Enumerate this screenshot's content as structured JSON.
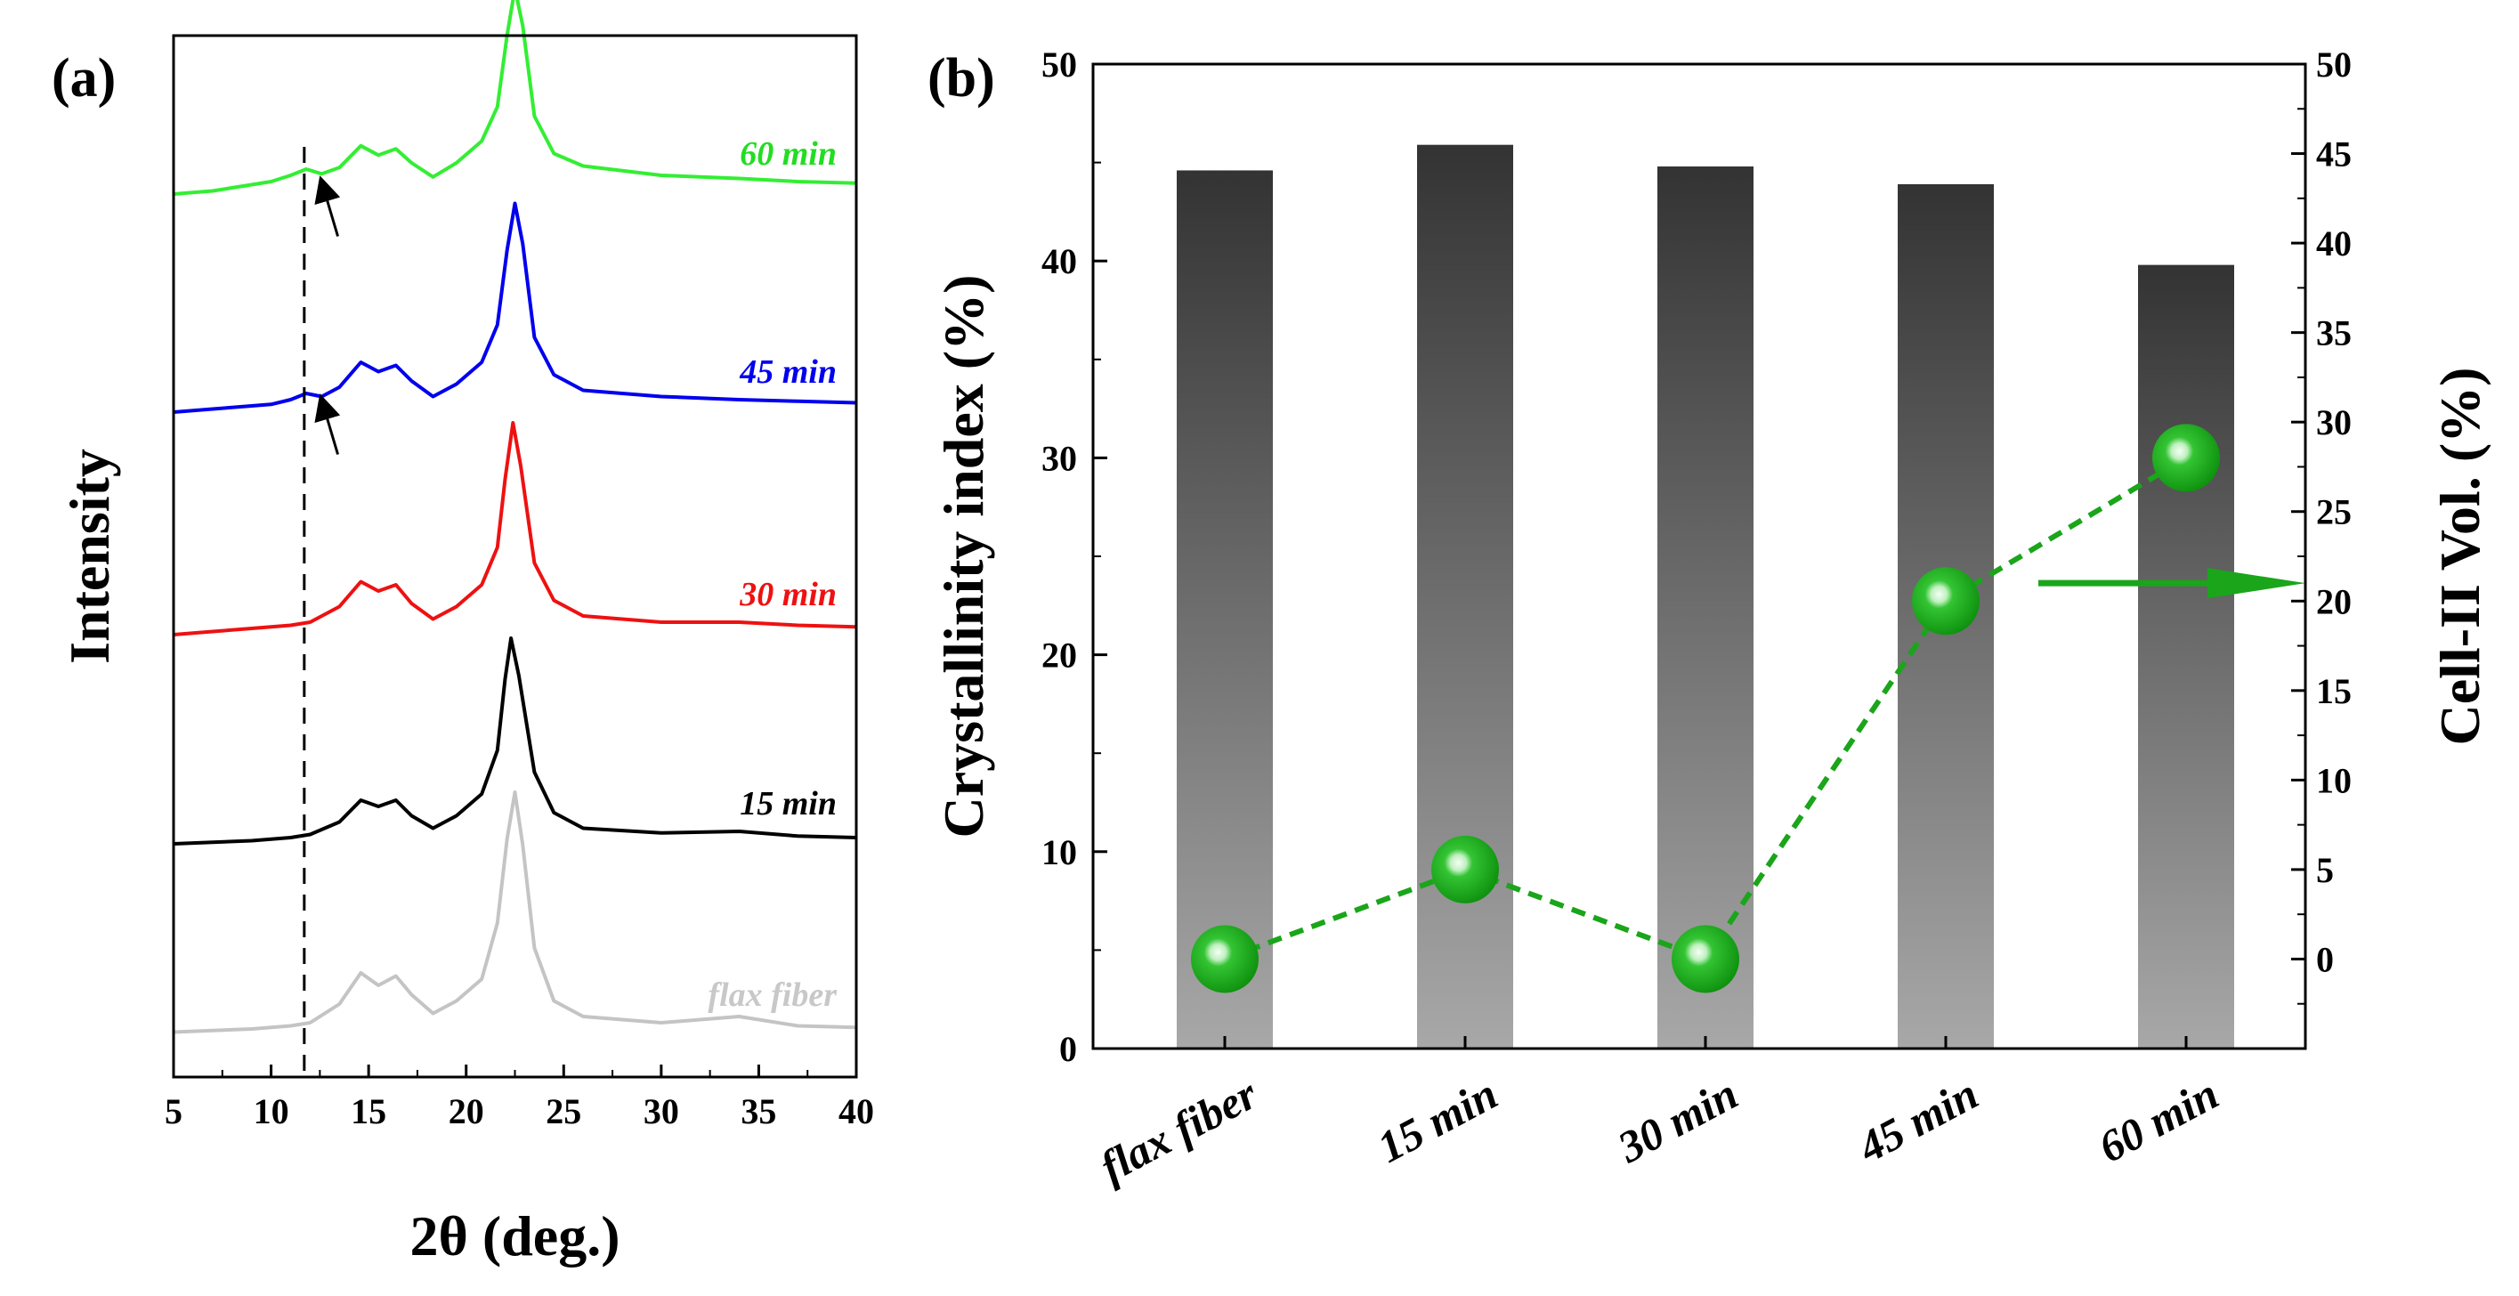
{
  "chart_data": [
    {
      "type": "line",
      "panel_label": "(a)",
      "title": "",
      "xlabel": "2θ (deg.)",
      "ylabel": "Intensity",
      "xlim": [
        5,
        40
      ],
      "xticks": [
        5,
        10,
        15,
        20,
        25,
        30,
        35,
        40
      ],
      "yticks_shown": false,
      "reference_line_x": 11.7,
      "arrow_annotations": [
        "60 min",
        "45 min"
      ],
      "series": [
        {
          "name": "60 min",
          "color": "#33ee33",
          "label_color": "#22dd22",
          "stack_index": 4,
          "points": [
            [
              5,
              0.02
            ],
            [
              7,
              0.03
            ],
            [
              9,
              0.05
            ],
            [
              10,
              0.06
            ],
            [
              11,
              0.08
            ],
            [
              11.8,
              0.1
            ],
            [
              12.6,
              0.085
            ],
            [
              13.5,
              0.105
            ],
            [
              14.6,
              0.175
            ],
            [
              15.5,
              0.145
            ],
            [
              16.4,
              0.165
            ],
            [
              17.2,
              0.12
            ],
            [
              18.3,
              0.075
            ],
            [
              19.5,
              0.12
            ],
            [
              20.8,
              0.19
            ],
            [
              21.6,
              0.3
            ],
            [
              22.1,
              0.53
            ],
            [
              22.5,
              0.68
            ],
            [
              22.9,
              0.56
            ],
            [
              23.5,
              0.27
            ],
            [
              24.5,
              0.15
            ],
            [
              26,
              0.11
            ],
            [
              30,
              0.08
            ],
            [
              34,
              0.07
            ],
            [
              37,
              0.06
            ],
            [
              40,
              0.055
            ]
          ]
        },
        {
          "name": "45 min",
          "color": "#0000ee",
          "label_color": "#0000ee",
          "stack_index": 3,
          "points": [
            [
              5,
              0.02
            ],
            [
              7,
              0.03
            ],
            [
              9,
              0.04
            ],
            [
              10,
              0.045
            ],
            [
              11,
              0.06
            ],
            [
              11.8,
              0.08
            ],
            [
              12.6,
              0.07
            ],
            [
              13.5,
              0.1
            ],
            [
              14.6,
              0.18
            ],
            [
              15.5,
              0.15
            ],
            [
              16.4,
              0.17
            ],
            [
              17.2,
              0.12
            ],
            [
              18.3,
              0.07
            ],
            [
              19.5,
              0.11
            ],
            [
              20.8,
              0.18
            ],
            [
              21.6,
              0.3
            ],
            [
              22.1,
              0.54
            ],
            [
              22.5,
              0.69
            ],
            [
              22.9,
              0.56
            ],
            [
              23.5,
              0.26
            ],
            [
              24.5,
              0.14
            ],
            [
              26,
              0.09
            ],
            [
              30,
              0.07
            ],
            [
              34,
              0.06
            ],
            [
              37,
              0.055
            ],
            [
              40,
              0.05
            ]
          ]
        },
        {
          "name": "30 min",
          "color": "#ee1111",
          "label_color": "#ee1111",
          "stack_index": 2,
          "points": [
            [
              5,
              0.02
            ],
            [
              7,
              0.03
            ],
            [
              9,
              0.04
            ],
            [
              10,
              0.045
            ],
            [
              11,
              0.05
            ],
            [
              12,
              0.06
            ],
            [
              13.5,
              0.11
            ],
            [
              14.6,
              0.19
            ],
            [
              15.5,
              0.16
            ],
            [
              16.4,
              0.18
            ],
            [
              17.2,
              0.12
            ],
            [
              18.3,
              0.07
            ],
            [
              19.5,
              0.11
            ],
            [
              20.8,
              0.18
            ],
            [
              21.6,
              0.3
            ],
            [
              22.0,
              0.52
            ],
            [
              22.4,
              0.7
            ],
            [
              22.8,
              0.56
            ],
            [
              23.5,
              0.25
            ],
            [
              24.5,
              0.13
            ],
            [
              26,
              0.08
            ],
            [
              30,
              0.06
            ],
            [
              34,
              0.06
            ],
            [
              37,
              0.05
            ],
            [
              40,
              0.045
            ]
          ]
        },
        {
          "name": "15 min",
          "color": "#000000",
          "label_color": "#000000",
          "stack_index": 1,
          "points": [
            [
              5,
              0.02
            ],
            [
              7,
              0.025
            ],
            [
              9,
              0.03
            ],
            [
              10,
              0.035
            ],
            [
              11,
              0.04
            ],
            [
              12,
              0.05
            ],
            [
              13.5,
              0.09
            ],
            [
              14.6,
              0.16
            ],
            [
              15.5,
              0.14
            ],
            [
              16.4,
              0.16
            ],
            [
              17.2,
              0.11
            ],
            [
              18.3,
              0.07
            ],
            [
              19.5,
              0.11
            ],
            [
              20.8,
              0.18
            ],
            [
              21.6,
              0.32
            ],
            [
              22.0,
              0.55
            ],
            [
              22.3,
              0.68
            ],
            [
              22.7,
              0.56
            ],
            [
              23.5,
              0.25
            ],
            [
              24.5,
              0.12
            ],
            [
              26,
              0.07
            ],
            [
              30,
              0.055
            ],
            [
              34,
              0.06
            ],
            [
              37,
              0.045
            ],
            [
              40,
              0.04
            ]
          ]
        },
        {
          "name": "flax fiber",
          "color": "#c4c4c4",
          "label_color": "#c8c8c8",
          "stack_index": 0,
          "points": [
            [
              5,
              0.03
            ],
            [
              7,
              0.035
            ],
            [
              9,
              0.04
            ],
            [
              10,
              0.045
            ],
            [
              11,
              0.05
            ],
            [
              12,
              0.06
            ],
            [
              13.5,
              0.12
            ],
            [
              14.6,
              0.22
            ],
            [
              15.5,
              0.18
            ],
            [
              16.4,
              0.21
            ],
            [
              17.2,
              0.15
            ],
            [
              18.3,
              0.09
            ],
            [
              19.5,
              0.13
            ],
            [
              20.8,
              0.2
            ],
            [
              21.6,
              0.38
            ],
            [
              22.1,
              0.65
            ],
            [
              22.5,
              0.8
            ],
            [
              22.9,
              0.63
            ],
            [
              23.5,
              0.3
            ],
            [
              24.5,
              0.13
            ],
            [
              26,
              0.08
            ],
            [
              30,
              0.06
            ],
            [
              34,
              0.08
            ],
            [
              37,
              0.05
            ],
            [
              40,
              0.045
            ]
          ]
        }
      ]
    },
    {
      "type": "bar",
      "panel_label": "(b)",
      "title": "",
      "xlabel": "",
      "ylabel": "Crystallinity index (%)",
      "y2label": "Cell-II Vol. (%)",
      "categories": [
        "flax fiber",
        "15 min",
        "30 min",
        "45 min",
        "60 min"
      ],
      "ylim": [
        0,
        50
      ],
      "yticks": [
        0,
        10,
        20,
        30,
        40,
        50
      ],
      "y2lim": [
        -5,
        50
      ],
      "y2ticks": [
        0,
        5,
        10,
        15,
        20,
        25,
        30,
        35,
        40,
        45,
        50
      ],
      "series": [
        {
          "name": "Crystallinity index",
          "axis": "left",
          "type": "bar",
          "color_top": "#333333",
          "color_bottom": "#a8a8a8",
          "values": [
            44.6,
            45.9,
            44.8,
            43.9,
            39.8
          ]
        },
        {
          "name": "Cell-II Vol.",
          "axis": "right",
          "type": "line-marker",
          "color": "#1aa51a",
          "line_style": "dashed",
          "values": [
            0,
            5,
            0,
            20,
            28
          ]
        }
      ],
      "annotation": "arrow pointing to right axis"
    }
  ]
}
